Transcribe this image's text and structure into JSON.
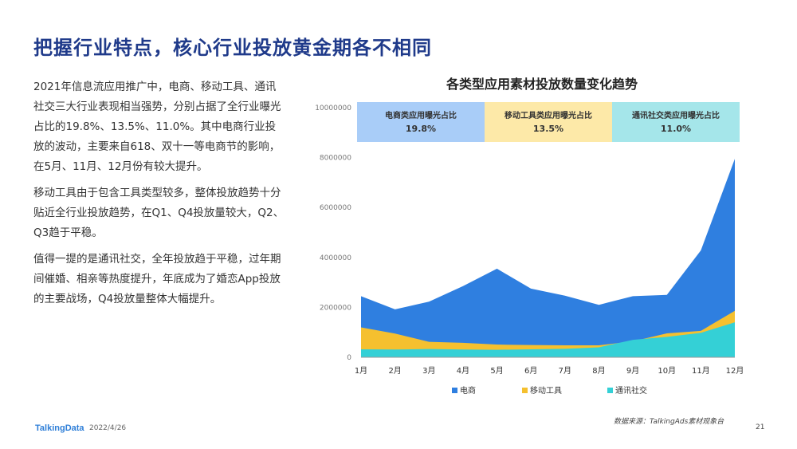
{
  "page_title": "把握行业特点，核心行业投放黄金期各不相同",
  "paragraphs": [
    "2021年信息流应用推广中，电商、移动工具、通讯社交三大行业表现相当强势，分别占据了全行业曝光占比的19.8%、13.5%、11.0%。其中电商行业投放的波动，主要来自618、双十一等电商节的影响，在5月、11月、12月份有较大提升。",
    "移动工具由于包含工具类型较多，整体投放趋势十分贴近全行业投放趋势，在Q1、Q4投放量较大，Q2、Q3趋于平稳。",
    "值得一提的是通讯社交，全年投放趋于平稳，过年期间催婚、相亲等热度提升，年底成为了婚恋App投放的主要战场，Q4投放量整体大幅提升。"
  ],
  "footer": {
    "logo": "TalkingData",
    "date": "2022/4/26",
    "source": "数据来源：TalkingAds素材观象台",
    "page_number": "21"
  },
  "chart_data": {
    "type": "area",
    "title": "各类型应用素材投放数量变化趋势",
    "categories": [
      "1月",
      "2月",
      "3月",
      "4月",
      "5月",
      "6月",
      "7月",
      "8月",
      "9月",
      "10月",
      "11月",
      "12月"
    ],
    "y_ticks": [
      "0",
      "2000000",
      "4000000",
      "6000000",
      "8000000",
      "10000000"
    ],
    "ylim": [
      0,
      10000000
    ],
    "grid": false,
    "legend_position": "bottom",
    "series": [
      {
        "name": "电商",
        "color": "#2f7fe0",
        "values": [
          2450000,
          1920000,
          2230000,
          2850000,
          3550000,
          2750000,
          2470000,
          2100000,
          2450000,
          2500000,
          4280000,
          7950000
        ]
      },
      {
        "name": "移动工具",
        "color": "#f5c02f",
        "values": [
          1200000,
          950000,
          620000,
          580000,
          510000,
          490000,
          480000,
          480000,
          640000,
          960000,
          1060000,
          1860000
        ]
      },
      {
        "name": "通讯社交",
        "color": "#34d0d6",
        "values": [
          320000,
          310000,
          330000,
          310000,
          300000,
          320000,
          340000,
          400000,
          700000,
          820000,
          980000,
          1400000
        ]
      }
    ],
    "share_boxes": [
      {
        "label": "电商类应用曝光占比",
        "value": "19.8%",
        "color": "#a9cdf8"
      },
      {
        "label": "移动工具类应用曝光占比",
        "value": "13.5%",
        "color": "#fde9a8"
      },
      {
        "label": "通讯社交类应用曝光占比",
        "value": "11.0%",
        "color": "#a5e6ea"
      }
    ]
  }
}
